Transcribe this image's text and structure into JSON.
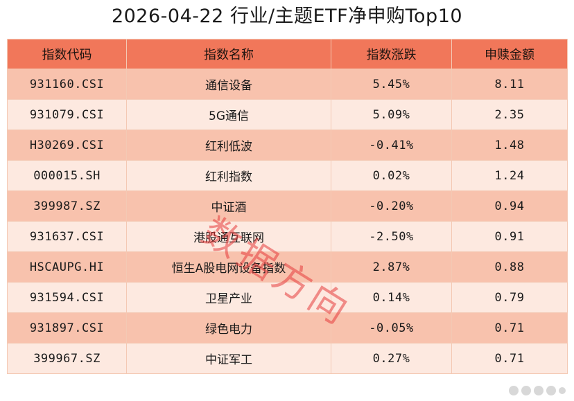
{
  "title": "2026-04-22 行业/主题ETF净申购Top10",
  "table": {
    "headers": [
      "指数代码",
      "指数名称",
      "指数涨跌",
      "申赎金额"
    ],
    "rows": [
      [
        "931160.CSI",
        "通信设备",
        "5.45%",
        "8.11"
      ],
      [
        "931079.CSI",
        "5G通信",
        "5.09%",
        "2.35"
      ],
      [
        "H30269.CSI",
        "红利低波",
        "-0.41%",
        "1.48"
      ],
      [
        "000015.SH",
        "红利指数",
        "0.02%",
        "1.24"
      ],
      [
        "399987.SZ",
        "中证酒",
        "-0.20%",
        "0.94"
      ],
      [
        "931637.CSI",
        "港股通互联网",
        "-2.50%",
        "0.91"
      ],
      [
        "HSCAUPG.HI",
        "恒生A股电网设备指数",
        "2.87%",
        "0.88"
      ],
      [
        "931594.CSI",
        "卫星产业",
        "0.14%",
        "0.79"
      ],
      [
        "931897.CSI",
        "绿色电力",
        "-0.05%",
        "0.71"
      ],
      [
        "399967.SZ",
        "中证军工",
        "0.27%",
        "0.71"
      ]
    ]
  },
  "watermark": "数据方向",
  "colors": {
    "header_bg": "#f1775a",
    "row_odd_bg": "#f8c2ad",
    "row_even_bg": "#fde9e0",
    "watermark": "#e63c3c"
  }
}
